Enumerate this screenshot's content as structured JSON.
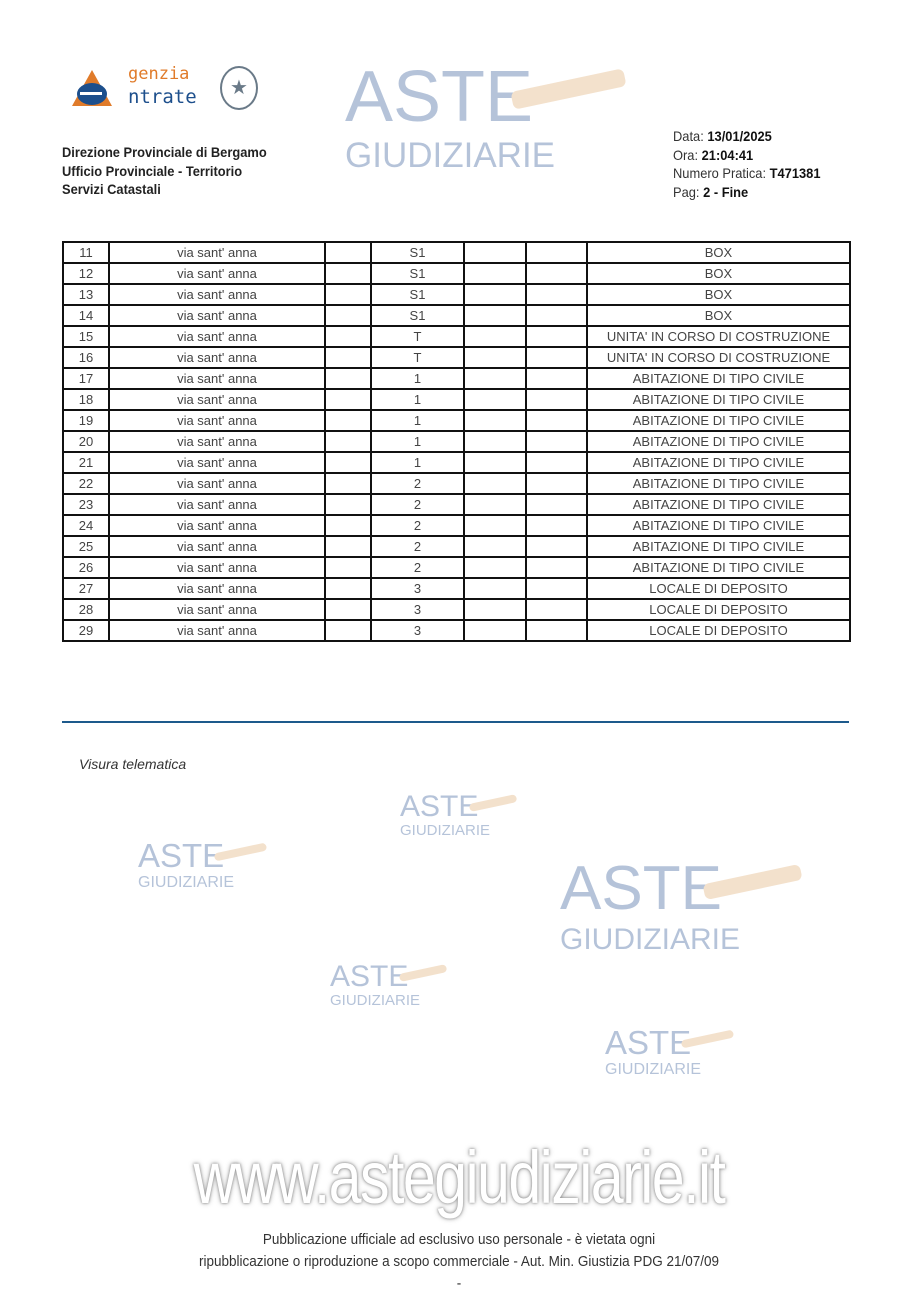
{
  "header": {
    "logo_text": [
      "genzia",
      "ntrate"
    ],
    "office_lines": [
      "Direzione Provinciale di Bergamo",
      "Ufficio Provinciale - Territorio",
      "Servizi Catastali"
    ],
    "data_label": "Data:",
    "data_value": "13/01/2025",
    "ora_label": "Ora:",
    "ora_value": "21:04:41",
    "pratica_label": "Numero Pratica:",
    "pratica_value": "T471381",
    "pag_label": "Pag:",
    "pag_value": "2 - Fine"
  },
  "watermark": {
    "line1": "ASTE",
    "line2": "GIUDIZIARIE",
    "site": "www.astegiudiziarie.it"
  },
  "table": {
    "rows": [
      [
        "11",
        "via sant' anna",
        "",
        "S1",
        "",
        "",
        "BOX"
      ],
      [
        "12",
        "via sant' anna",
        "",
        "S1",
        "",
        "",
        "BOX"
      ],
      [
        "13",
        "via sant' anna",
        "",
        "S1",
        "",
        "",
        "BOX"
      ],
      [
        "14",
        "via sant' anna",
        "",
        "S1",
        "",
        "",
        "BOX"
      ],
      [
        "15",
        "via sant' anna",
        "",
        "T",
        "",
        "",
        "UNITA' IN CORSO DI COSTRUZIONE"
      ],
      [
        "16",
        "via sant' anna",
        "",
        "T",
        "",
        "",
        "UNITA' IN CORSO DI COSTRUZIONE"
      ],
      [
        "17",
        "via sant' anna",
        "",
        "1",
        "",
        "",
        "ABITAZIONE DI TIPO CIVILE"
      ],
      [
        "18",
        "via sant' anna",
        "",
        "1",
        "",
        "",
        "ABITAZIONE DI TIPO CIVILE"
      ],
      [
        "19",
        "via sant' anna",
        "",
        "1",
        "",
        "",
        "ABITAZIONE DI TIPO CIVILE"
      ],
      [
        "20",
        "via sant' anna",
        "",
        "1",
        "",
        "",
        "ABITAZIONE DI TIPO CIVILE"
      ],
      [
        "21",
        "via sant' anna",
        "",
        "1",
        "",
        "",
        "ABITAZIONE DI TIPO CIVILE"
      ],
      [
        "22",
        "via sant' anna",
        "",
        "2",
        "",
        "",
        "ABITAZIONE DI TIPO CIVILE"
      ],
      [
        "23",
        "via sant' anna",
        "",
        "2",
        "",
        "",
        "ABITAZIONE DI TIPO CIVILE"
      ],
      [
        "24",
        "via sant' anna",
        "",
        "2",
        "",
        "",
        "ABITAZIONE DI TIPO CIVILE"
      ],
      [
        "25",
        "via sant' anna",
        "",
        "2",
        "",
        "",
        "ABITAZIONE DI TIPO CIVILE"
      ],
      [
        "26",
        "via sant' anna",
        "",
        "2",
        "",
        "",
        "ABITAZIONE DI TIPO CIVILE"
      ],
      [
        "27",
        "via sant' anna",
        "",
        "3",
        "",
        "",
        "LOCALE DI DEPOSITO"
      ],
      [
        "28",
        "via sant' anna",
        "",
        "3",
        "",
        "",
        "LOCALE DI DEPOSITO"
      ],
      [
        "29",
        "via sant' anna",
        "",
        "3",
        "",
        "",
        "LOCALE DI DEPOSITO"
      ]
    ]
  },
  "visura": "Visura telematica",
  "footer": {
    "line1": "Pubblicazione ufficiale ad esclusivo uso personale - è vietata ogni",
    "line2": "ripubblicazione o riproduzione a scopo commerciale - Aut. Min. Giustizia PDG 21/07/09",
    "line3": "-"
  }
}
